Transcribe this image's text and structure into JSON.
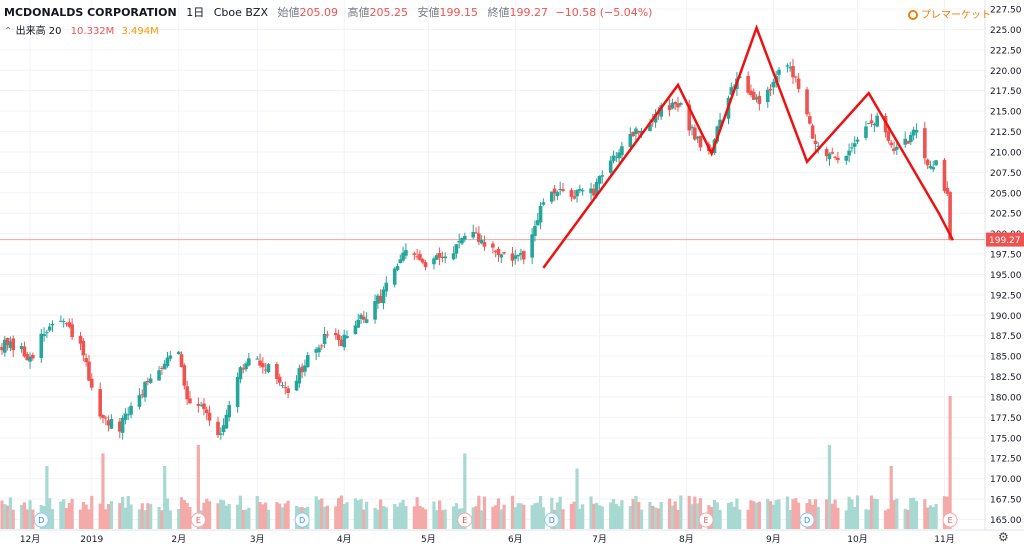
{
  "legend": {
    "symbol": "MCDONALDS CORPORATION",
    "interval": "1日",
    "exchange": "Cboe BZX",
    "open_label": "始値",
    "open": "205.09",
    "high_label": "高値",
    "high": "205.25",
    "low_label": "安値",
    "low": "199.15",
    "close_label": "終値",
    "close": "199.27",
    "change": "−10.58 (−5.04%)"
  },
  "volume_legend": {
    "label": "出来高 20",
    "value1": "10.332M",
    "value2": "3.494M"
  },
  "premarket": {
    "label": "プレマーケット",
    "icon": "sun-icon"
  },
  "settings_icon": "gear-icon",
  "colors": {
    "up": "#26a69a",
    "down": "#ef5350",
    "vol_up": "#a8d8d2",
    "vol_down": "#f4aaa8",
    "pattern": "#ee1111",
    "price_line": "#f4a3a0",
    "grid": "#f0f3fa"
  },
  "chart_data": {
    "type": "candlestick",
    "title": "MCDONALDS CORPORATION",
    "y_axis": {
      "min": 165,
      "max": 227.5,
      "ticks": [
        "165.00",
        "167.50",
        "170.00",
        "172.50",
        "175.00",
        "177.50",
        "180.00",
        "182.50",
        "185.00",
        "187.50",
        "190.00",
        "192.50",
        "195.00",
        "197.50",
        "200.00",
        "202.50",
        "205.00",
        "207.50",
        "210.00",
        "212.50",
        "215.00",
        "217.50",
        "220.00",
        "222.50",
        "225.00",
        "227.50"
      ],
      "side": "right"
    },
    "x_axis": {
      "labels": [
        {
          "label": "12月",
          "day": 10
        },
        {
          "label": "2019",
          "day": 32
        },
        {
          "label": "2月",
          "day": 63
        },
        {
          "label": "3月",
          "day": 91
        },
        {
          "label": "4月",
          "day": 122
        },
        {
          "label": "5月",
          "day": 152
        },
        {
          "label": "6月",
          "day": 183
        },
        {
          "label": "7月",
          "day": 213
        },
        {
          "label": "8月",
          "day": 244
        },
        {
          "label": "9月",
          "day": 275
        },
        {
          "label": "10月",
          "day": 305
        },
        {
          "label": "11月",
          "day": 336
        }
      ]
    },
    "current_price": {
      "value": 199.27,
      "label": "199.27"
    },
    "anchors": [
      [
        0,
        186.5
      ],
      [
        10,
        185
      ],
      [
        20,
        190
      ],
      [
        28,
        186
      ],
      [
        36,
        177
      ],
      [
        42,
        176
      ],
      [
        48,
        180
      ],
      [
        55,
        183
      ],
      [
        62,
        187
      ],
      [
        66,
        180
      ],
      [
        72,
        179
      ],
      [
        78,
        175
      ],
      [
        85,
        183
      ],
      [
        90,
        185
      ],
      [
        96,
        183
      ],
      [
        102,
        181
      ],
      [
        108,
        184
      ],
      [
        115,
        187
      ],
      [
        121,
        187
      ],
      [
        127,
        189
      ],
      [
        133,
        191
      ],
      [
        139,
        195
      ],
      [
        145,
        198
      ],
      [
        151,
        196
      ],
      [
        157,
        197
      ],
      [
        163,
        199
      ],
      [
        169,
        199.5
      ],
      [
        175,
        198
      ],
      [
        181,
        197
      ],
      [
        187,
        197
      ],
      [
        193,
        204
      ],
      [
        199,
        205
      ],
      [
        205,
        205
      ],
      [
        211,
        205
      ],
      [
        217,
        209
      ],
      [
        223,
        212
      ],
      [
        229,
        213
      ],
      [
        235,
        215
      ],
      [
        241,
        216
      ],
      [
        247,
        212
      ],
      [
        253,
        210
      ],
      [
        257,
        215
      ],
      [
        263,
        220
      ],
      [
        267,
        217
      ],
      [
        271,
        216
      ],
      [
        275,
        219
      ],
      [
        281,
        220
      ],
      [
        285,
        218
      ],
      [
        289,
        212
      ],
      [
        295,
        209
      ],
      [
        301,
        210
      ],
      [
        307,
        213
      ],
      [
        313,
        214
      ],
      [
        318,
        210
      ],
      [
        322,
        211
      ],
      [
        326,
        213
      ],
      [
        330,
        209
      ],
      [
        334,
        208
      ],
      [
        337,
        205
      ],
      [
        338,
        199.27
      ]
    ],
    "pattern_line": [
      [
        193,
        195.8
      ],
      [
        241,
        218.2
      ],
      [
        253,
        209.8
      ],
      [
        269,
        225.2
      ],
      [
        287,
        208.8
      ],
      [
        309,
        217.2
      ],
      [
        334,
        202.5
      ],
      [
        339,
        199.2
      ]
    ],
    "events": [
      {
        "day": 14,
        "label": "D"
      },
      {
        "day": 70,
        "label": "E"
      },
      {
        "day": 107,
        "label": "D"
      },
      {
        "day": 165,
        "label": "E"
      },
      {
        "day": 196,
        "label": "D"
      },
      {
        "day": 251,
        "label": "E"
      },
      {
        "day": 287,
        "label": "D"
      },
      {
        "day": 338,
        "label": "E"
      }
    ],
    "volume_spikes": [
      [
        16,
        0.75
      ],
      [
        36,
        0.9
      ],
      [
        58,
        0.75
      ],
      [
        70,
        1.0
      ],
      [
        165,
        0.9
      ],
      [
        205,
        0.72
      ],
      [
        251,
        0.78
      ],
      [
        295,
        1.0
      ],
      [
        307,
        0.9
      ],
      [
        317,
        0.75
      ],
      [
        338,
        0.9
      ]
    ]
  }
}
